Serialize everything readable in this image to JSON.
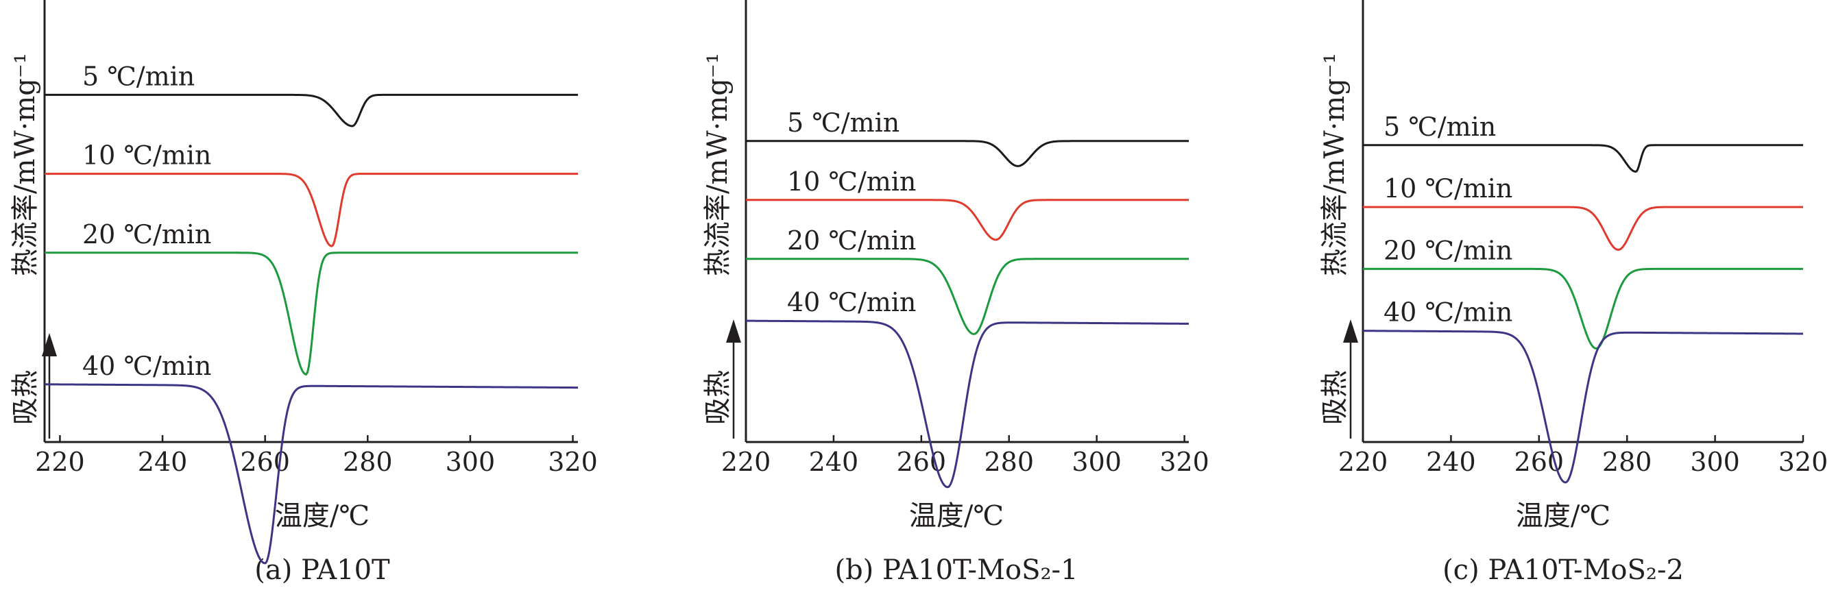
{
  "figure": {
    "x_axis_label": "温度/℃",
    "y_axis_label": "热流率/mW·mg⁻¹",
    "endotherm_label": "吸热"
  },
  "chart_data": [
    {
      "type": "line",
      "caption": "(a) PA10T",
      "xlabel": "温度/℃",
      "ylabel": "热流率/mW·mg⁻¹",
      "xlim": [
        217,
        321
      ],
      "xticks": [
        "220",
        "240",
        "260",
        "280",
        "300",
        "320"
      ],
      "series": [
        {
          "name": "5 ℃/min",
          "color": "#1a1a1a",
          "baseline_left": 0.8,
          "baseline_right": 0.8,
          "peak_x": 277,
          "depth": 0.95,
          "width_left": 3.0,
          "width_right": 1.5
        },
        {
          "name": "10 ℃/min",
          "color": "#e03a2c",
          "baseline_left": 3.2,
          "baseline_right": 3.2,
          "peak_x": 273,
          "depth": 2.2,
          "width_left": 2.6,
          "width_right": 1.4
        },
        {
          "name": "20 ℃/min",
          "color": "#1b9a3e",
          "baseline_left": 5.6,
          "baseline_right": 5.6,
          "peak_x": 268,
          "depth": 3.7,
          "width_left": 3.0,
          "width_right": 1.4
        },
        {
          "name": "40 ℃/min",
          "color": "#3c3585",
          "baseline_left": 9.6,
          "baseline_right": 9.7,
          "peak_x": 260,
          "depth": 5.4,
          "width_left": 4.5,
          "width_right": 2.2
        }
      ]
    },
    {
      "type": "line",
      "caption": "(b) PA10T-MoS₂-1",
      "xlabel": "温度/℃",
      "ylabel": "热流率/mW·mg⁻¹",
      "xlim": [
        220,
        321
      ],
      "xticks": [
        "220",
        "240",
        "260",
        "280",
        "300",
        "320"
      ],
      "series": [
        {
          "name": "5 ℃/min",
          "color": "#1a1a1a",
          "baseline_left": 1.6,
          "baseline_right": 1.6,
          "peak_x": 282,
          "depth": 0.85,
          "width_left": 3.0,
          "width_right": 3.0
        },
        {
          "name": "10 ℃/min",
          "color": "#e03a2c",
          "baseline_left": 3.6,
          "baseline_right": 3.6,
          "peak_x": 277,
          "depth": 1.35,
          "width_left": 3.5,
          "width_right": 2.8
        },
        {
          "name": "20 ℃/min",
          "color": "#1b9a3e",
          "baseline_left": 5.6,
          "baseline_right": 5.6,
          "peak_x": 272,
          "depth": 2.55,
          "width_left": 4.0,
          "width_right": 3.2
        },
        {
          "name": "40 ℃/min",
          "color": "#3c3585",
          "baseline_left": 7.7,
          "baseline_right": 7.8,
          "peak_x": 266,
          "depth": 5.6,
          "width_left": 5.0,
          "width_right": 3.5
        }
      ]
    },
    {
      "type": "line",
      "caption": "(c) PA10T-MoS₂-2",
      "xlabel": "温度/℃",
      "ylabel": "热流率/mW·mg⁻¹",
      "xlim": [
        220,
        320
      ],
      "xticks": [
        "220",
        "240",
        "260",
        "280",
        "300",
        "320"
      ],
      "series": [
        {
          "name": "5 ℃/min",
          "color": "#1a1a1a",
          "baseline_left": 1.6,
          "baseline_right": 1.6,
          "peak_x": 282,
          "depth": 0.9,
          "width_left": 2.5,
          "width_right": 1.0
        },
        {
          "name": "10 ℃/min",
          "color": "#e03a2c",
          "baseline_left": 3.7,
          "baseline_right": 3.7,
          "peak_x": 278,
          "depth": 1.45,
          "width_left": 3.0,
          "width_right": 2.8
        },
        {
          "name": "20 ℃/min",
          "color": "#1b9a3e",
          "baseline_left": 5.8,
          "baseline_right": 5.8,
          "peak_x": 273,
          "depth": 2.7,
          "width_left": 3.5,
          "width_right": 3.2
        },
        {
          "name": "40 ℃/min",
          "color": "#3c3585",
          "baseline_left": 7.9,
          "baseline_right": 8.0,
          "peak_x": 266,
          "depth": 5.1,
          "width_left": 4.5,
          "width_right": 3.5
        }
      ]
    }
  ]
}
